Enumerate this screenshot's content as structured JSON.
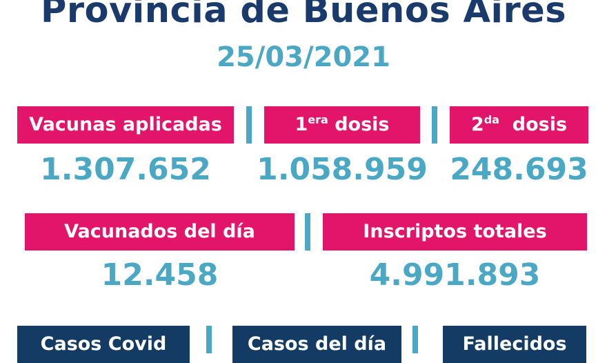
{
  "header": {
    "title": "Provincia de Buenos Aires",
    "date": "25/03/2021"
  },
  "row1": {
    "aplicadas": {
      "label": "Vacunas aplicadas",
      "value": "1.307.652"
    },
    "primera": {
      "number": "1",
      "suffix": "era",
      "word": "dosis",
      "value": "1.058.959"
    },
    "segunda": {
      "number": "2",
      "suffix": "da",
      "word": "dosis",
      "value": "248.693"
    }
  },
  "row2": {
    "vacunados_dia": {
      "label": "Vacunados del día",
      "value": "12.458"
    },
    "inscriptos": {
      "label": "Inscriptos totales",
      "value": "4.991.893"
    }
  },
  "row3": {
    "casos_covid": {
      "label": "Casos Covid"
    },
    "casos_dia": {
      "label": "Casos del día"
    },
    "fallecidos": {
      "label": "Fallecidos"
    }
  },
  "colors": {
    "navy": "#1a3a6b",
    "teal": "#4aa8c4",
    "pink": "#e3156b",
    "dark_navy": "#143b63"
  }
}
